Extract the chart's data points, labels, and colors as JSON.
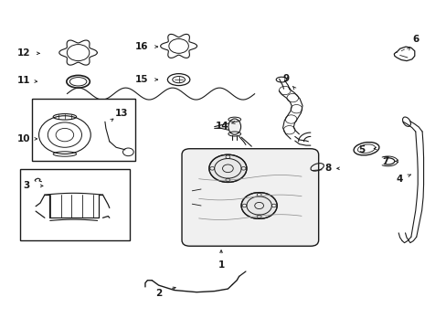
{
  "background_color": "#ffffff",
  "line_color": "#1a1a1a",
  "fig_width": 4.89,
  "fig_height": 3.6,
  "dpi": 100,
  "label_positions": {
    "1": [
      0.495,
      0.195,
      0.495,
      0.25
    ],
    "2": [
      0.355,
      0.108,
      0.4,
      0.13
    ],
    "3": [
      0.06,
      0.435,
      0.098,
      0.435
    ],
    "4": [
      0.895,
      0.455,
      0.92,
      0.47
    ],
    "5": [
      0.81,
      0.545,
      0.835,
      0.548
    ],
    "6": [
      0.93,
      0.88,
      0.918,
      0.858
    ],
    "7": [
      0.862,
      0.51,
      0.878,
      0.51
    ],
    "8": [
      0.735,
      0.488,
      0.752,
      0.488
    ],
    "9": [
      0.64,
      0.76,
      0.655,
      0.738
    ],
    "10": [
      0.053,
      0.578,
      0.085,
      0.578
    ],
    "11": [
      0.053,
      0.755,
      0.085,
      0.752
    ],
    "12": [
      0.053,
      0.838,
      0.09,
      0.838
    ],
    "13": [
      0.272,
      0.655,
      0.255,
      0.64
    ],
    "14": [
      0.498,
      0.618,
      0.518,
      0.625
    ],
    "15": [
      0.318,
      0.758,
      0.36,
      0.758
    ],
    "16": [
      0.318,
      0.858,
      0.36,
      0.858
    ]
  }
}
